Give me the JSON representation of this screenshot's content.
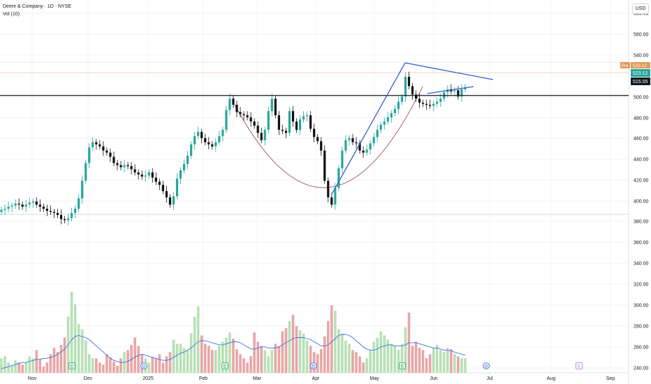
{
  "header": {
    "title": "Deere & Company · 1D · NYSE",
    "indicator": "Vol (10)",
    "currency": "USD"
  },
  "colors": {
    "up": "#26a69a",
    "down": "#101010",
    "vol_up": "#b8e0b6",
    "vol_down": "#e8a6a6",
    "ma": "#3b73d9",
    "pattern": "#2f5fd6",
    "cup": "#a0506e",
    "tag_green": "#26a69a",
    "tag_orange": "#e19a5a"
  },
  "chart_data": {
    "type": "candlestick",
    "y_ticks": [
      "580.00",
      "560.00",
      "540.00",
      "523.12",
      "500.00",
      "480.00",
      "460.00",
      "440.00",
      "420.00",
      "400.00",
      "380.00",
      "360.00",
      "340.00",
      "320.00",
      "300.00",
      "280.00",
      "260.00",
      "240.00"
    ],
    "x_ticks": [
      "Nov",
      "Dec",
      "2025",
      "Feb",
      "Mar",
      "Apr",
      "May",
      "Jun",
      "Jul",
      "Aug",
      "Sep"
    ],
    "price_range": [
      380,
      584
    ],
    "tags": {
      "pre_label": "Pre",
      "pre_value": "523.12",
      "last": "523.12",
      "level": "515.05"
    },
    "horizontal_line": 515.05,
    "event_markers": [
      "E",
      "D",
      "E",
      "D",
      "E",
      "D",
      "E"
    ],
    "closes": [
      405,
      406,
      408,
      409,
      411,
      410,
      408,
      410,
      412,
      413,
      410,
      408,
      406,
      404,
      403,
      402,
      400,
      396,
      395,
      397,
      402,
      406,
      416,
      433,
      450,
      465,
      470,
      468,
      466,
      462,
      460,
      456,
      450,
      448,
      446,
      448,
      447,
      444,
      441,
      439,
      437,
      438,
      441,
      436,
      432,
      429,
      423,
      417,
      410,
      418,
      435,
      443,
      449,
      457,
      468,
      476,
      480,
      474,
      470,
      468,
      466,
      470,
      476,
      482,
      501,
      512,
      506,
      499,
      497,
      496,
      494,
      490,
      486,
      479,
      472,
      482,
      500,
      512,
      496,
      482,
      481,
      479,
      500,
      490,
      482,
      492,
      495,
      496,
      483,
      475,
      471,
      462,
      433,
      417,
      410,
      426,
      445,
      462,
      472,
      474,
      470,
      469,
      462,
      460,
      463,
      469,
      475,
      482,
      487,
      490,
      494,
      498,
      502,
      509,
      514,
      533,
      524,
      516,
      512,
      508,
      507,
      506,
      505,
      507,
      509,
      512,
      518,
      521,
      519,
      520,
      514,
      521,
      523
    ],
    "volumes": [
      262,
      264,
      258,
      255,
      260,
      258,
      256,
      258,
      264,
      262,
      270,
      261,
      254,
      258,
      266,
      272,
      268,
      275,
      282,
      302,
      326,
      314,
      295,
      290,
      279,
      266,
      262,
      262,
      258,
      256,
      266,
      263,
      259,
      255,
      262,
      268,
      270,
      275,
      282,
      274,
      266,
      262,
      258,
      263,
      262,
      266,
      258,
      264,
      268,
      280,
      276,
      276,
      272,
      270,
      286,
      302,
      312,
      284,
      276,
      274,
      270,
      270,
      274,
      278,
      282,
      287,
      281,
      271,
      266,
      262,
      258,
      264,
      287,
      278,
      274,
      270,
      264,
      270,
      276,
      274,
      288,
      291,
      298,
      304,
      293,
      289,
      286,
      279,
      274,
      268,
      266,
      271,
      283,
      298,
      313,
      308,
      290,
      286,
      279,
      276,
      270,
      268,
      264,
      258,
      262,
      270,
      278,
      282,
      288,
      284,
      280,
      276,
      274,
      270,
      276,
      292,
      306,
      274,
      278,
      272,
      270,
      262,
      266,
      272,
      275,
      270,
      268,
      272,
      271,
      266,
      264,
      262,
      262
    ],
    "vol_ma": [
      252,
      253,
      254,
      255,
      256,
      257,
      258,
      258,
      259,
      260,
      261,
      261,
      262,
      262,
      263,
      264,
      266,
      268,
      271,
      275,
      280,
      283,
      284,
      283,
      282,
      280,
      277,
      274,
      271,
      268,
      265,
      262,
      260,
      259,
      258,
      258,
      259,
      261,
      263,
      265,
      266,
      265,
      264,
      263,
      262,
      261,
      260,
      260,
      261,
      263,
      265,
      267,
      268,
      270,
      272,
      275,
      278,
      279,
      279,
      278,
      277,
      276,
      275,
      275,
      276,
      277,
      278,
      278,
      277,
      275,
      273,
      271,
      271,
      272,
      273,
      273,
      272,
      272,
      272,
      273,
      275,
      277,
      279,
      281,
      282,
      282,
      282,
      281,
      280,
      278,
      276,
      274,
      274,
      275,
      278,
      281,
      284,
      285,
      285,
      284,
      282,
      279,
      276,
      273,
      271,
      270,
      270,
      271,
      273,
      274,
      275,
      275,
      274,
      274,
      274,
      275,
      277,
      277,
      277,
      276,
      275,
      274,
      273,
      272,
      272,
      271,
      270,
      270,
      269,
      268,
      267,
      266,
      265
    ]
  }
}
